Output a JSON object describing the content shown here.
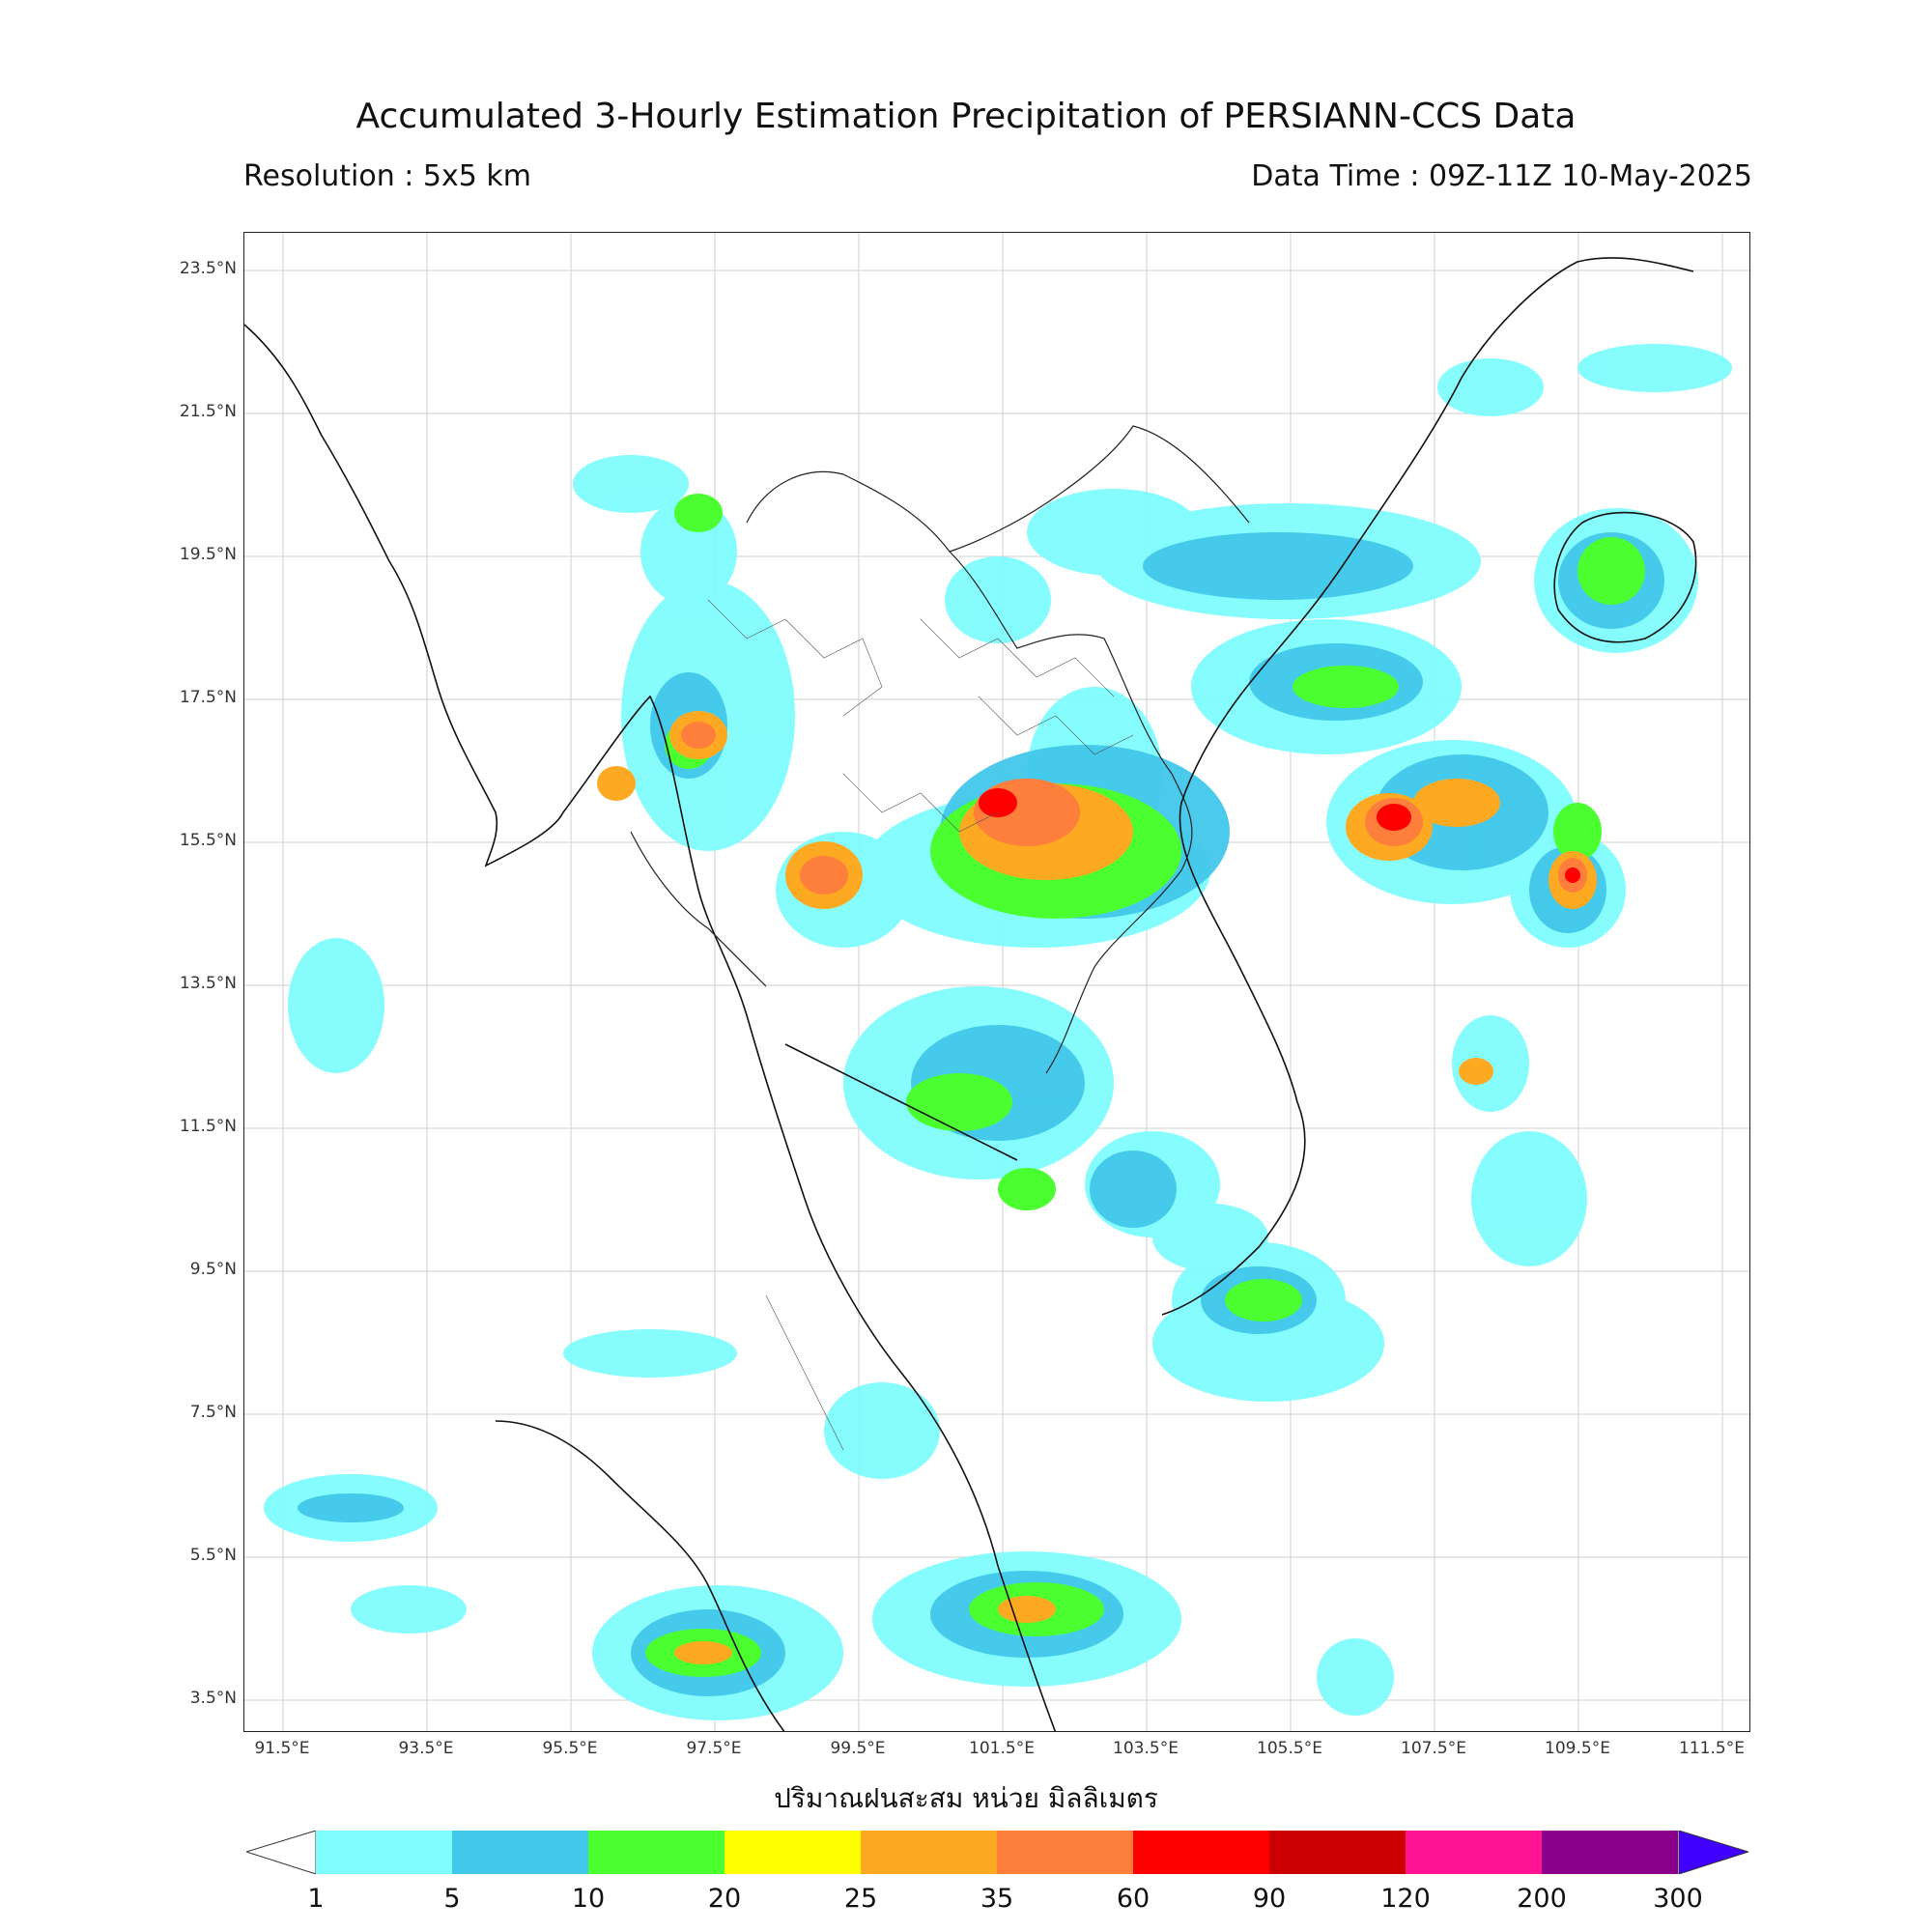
{
  "title": "Accumulated 3-Hourly Estimation Precipitation of PERSIANN-CCS Data",
  "resolution": "Resolution : 5x5 km",
  "data_time": "Data Time : 09Z-11Z 10-May-2025",
  "xlabel": "ปริมาณฝนสะสม หน่วย มิลลิเมตร",
  "lat_ticks": [
    "23.5°N",
    "21.5°N",
    "19.5°N",
    "17.5°N",
    "15.5°N",
    "13.5°N",
    "11.5°N",
    "9.5°N",
    "7.5°N",
    "5.5°N",
    "3.5°N"
  ],
  "lon_ticks": [
    "91.5°E",
    "93.5°E",
    "95.5°E",
    "97.5°E",
    "99.5°E",
    "101.5°E",
    "103.5°E",
    "105.5°E",
    "107.5°E",
    "109.5°E",
    "111.5°E"
  ],
  "colorbar": {
    "labels": [
      "1",
      "5",
      "10",
      "20",
      "25",
      "35",
      "60",
      "90",
      "120",
      "200",
      "300"
    ],
    "colors": [
      "#7ffcfd",
      "#41c7ea",
      "#4bfe2f",
      "#fefe00",
      "#fea922",
      "#fe7f3c",
      "#fe0000",
      "#cc0000",
      "#fe1493",
      "#8b008b",
      "#3f00ff"
    ]
  }
}
